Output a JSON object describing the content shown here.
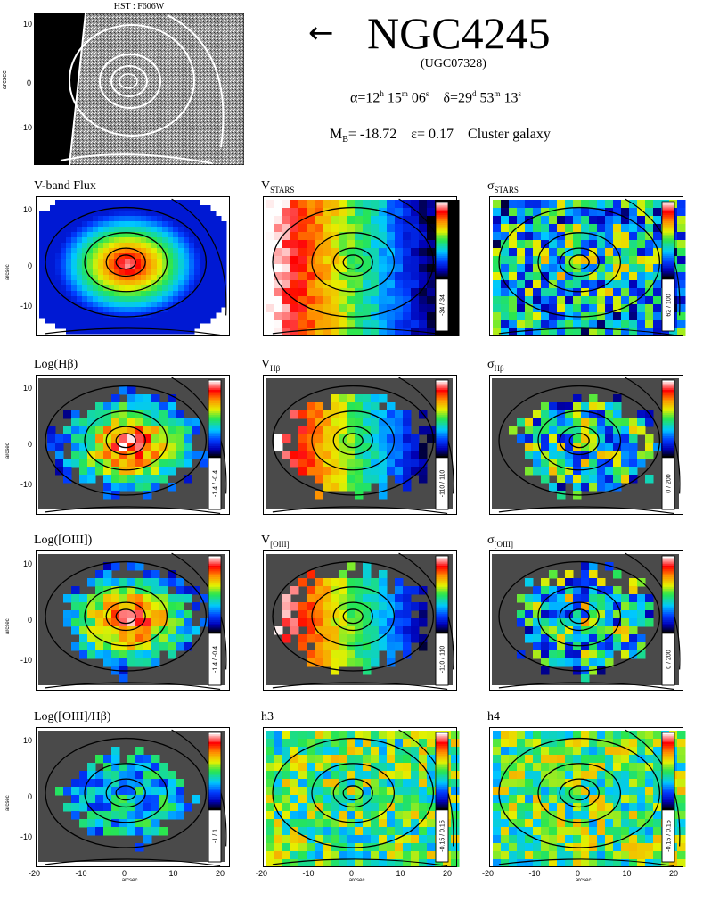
{
  "header": {
    "hst_label": "HST : F606W",
    "arrow": "←",
    "galaxy_name": "NGC4245",
    "alt_name": "(UGC07328)",
    "ra_prefix": "α=12",
    "ra_h": "h",
    "ra_m": "15",
    "ra_m_unit": "m",
    "ra_s": "06",
    "ra_s_unit": "s",
    "dec_prefix": "δ=29",
    "dec_d": "d",
    "dec_m": "53",
    "dec_m_unit": "m",
    "dec_s": "13",
    "dec_s_unit": "s",
    "mb_label": "M",
    "mb_sub": "B",
    "mb_value": "= -18.72",
    "ellipticity": "ε= 0.17",
    "environment": "Cluster galaxy"
  },
  "axes": {
    "y_ticks": [
      "10",
      "0",
      "-10"
    ],
    "x_ticks": [
      "-20",
      "-10",
      "0",
      "10",
      "20"
    ],
    "y_label": "arcsec",
    "x_label": "arcsec"
  },
  "panels": [
    {
      "title": "V-band Flux",
      "range": ""
    },
    {
      "title": "V",
      "sub": "STARS",
      "range": "-34 / 34"
    },
    {
      "title": "σ",
      "sub": "STARS",
      "range": "62 / 100"
    },
    {
      "title": "Log(Hβ)",
      "range": "-1.4 / -0.4"
    },
    {
      "title": "V",
      "sub": "Hβ",
      "range": "-110 / 110"
    },
    {
      "title": "σ",
      "sub": "Hβ",
      "range": "0 / 200"
    },
    {
      "title": "Log([OIII])",
      "range": "-1.4 / -0.4"
    },
    {
      "title": "V",
      "sub": "[OIII]",
      "range": "-110 / 110"
    },
    {
      "title": "σ",
      "sub": "[OIII]",
      "range": "0 / 200"
    },
    {
      "title": "Log([OIII]/Hβ)",
      "range": "-1 / 1"
    },
    {
      "title": "h3",
      "range": "-0.15 / 0.15"
    },
    {
      "title": "h4",
      "range": "-0.15 / 0.15"
    }
  ],
  "colors": {
    "background_mask": "#4a4a4a",
    "colorbar": [
      "#ffffff",
      "#ff9999",
      "#ff0000",
      "#ff8000",
      "#ffff00",
      "#00ff00",
      "#00ffff",
      "#0080ff",
      "#0000ff",
      "#000000"
    ]
  }
}
